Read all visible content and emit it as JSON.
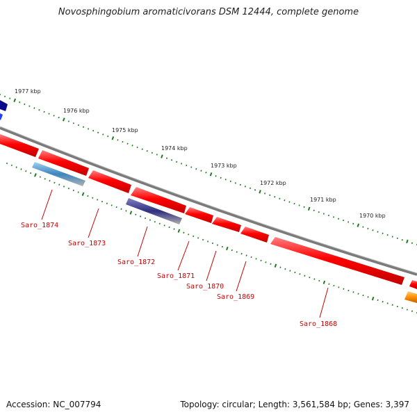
{
  "title": "Novosphingobium aromaticivorans DSM 12444, complete genome",
  "footer": {
    "accession": "Accession: NC_007794",
    "topology": "Topology: circular; Length: 3,561,584 bp; Genes: 3,397"
  },
  "ruler": {
    "ticks": [
      "1977 kbp",
      "1976 kbp",
      "1975 kbp",
      "1974 kbp",
      "1973 kbp",
      "1972 kbp",
      "1971 kbp",
      "1970 kbp"
    ]
  },
  "genes": [
    {
      "label": "Saro_1874"
    },
    {
      "label": "Saro_1873"
    },
    {
      "label": "Saro_1872"
    },
    {
      "label": "Saro_1871"
    },
    {
      "label": "Saro_1870"
    },
    {
      "label": "Saro_1869"
    },
    {
      "label": "Saro_1868"
    }
  ],
  "colors": {
    "forward_gene": "#ff0000",
    "backbone": "#808080",
    "tick": "#1f7a1f",
    "label": "#cc0000"
  }
}
